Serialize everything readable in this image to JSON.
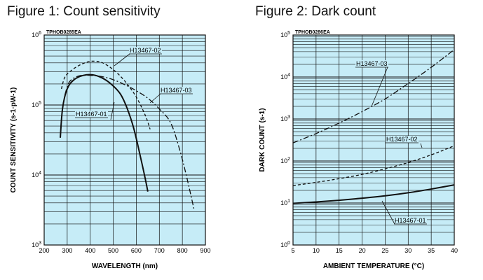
{
  "chart_data": [
    {
      "type": "line",
      "title": "Figure 1: Count sensitivity",
      "code": "TPHOB0285EA",
      "xlabel": "WAVELENGTH (nm)",
      "ylabel": "COUNT SENSITIVITY (s-1·pW-1)",
      "xlim": [
        200,
        900
      ],
      "ylim": [
        1000,
        1000000
      ],
      "yscale": "log",
      "xticks": [
        "200",
        "300",
        "400",
        "500",
        "600",
        "700",
        "800",
        "900"
      ],
      "yticks": [
        {
          "base": "10",
          "exp": "3"
        },
        {
          "base": "10",
          "exp": "4"
        },
        {
          "base": "10",
          "exp": "5"
        },
        {
          "base": "10",
          "exp": "6"
        }
      ],
      "series": [
        {
          "name": "H13467-01",
          "style": "solid",
          "x": [
            270,
            280,
            300,
            330,
            370,
            410,
            450,
            490,
            530,
            560,
            590,
            620,
            640,
            650
          ],
          "y": [
            34000,
            90000,
            170000,
            230000,
            265000,
            270000,
            245000,
            200000,
            145000,
            90000,
            45000,
            17000,
            8500,
            5800
          ]
        },
        {
          "name": "H13467-02",
          "style": "dashed",
          "x": [
            275,
            290,
            320,
            360,
            400,
            440,
            470,
            500,
            530,
            560,
            600,
            640,
            660
          ],
          "y": [
            170000,
            250000,
            315000,
            380000,
            420000,
            415000,
            375000,
            320000,
            260000,
            200000,
            130000,
            70000,
            45000
          ]
        },
        {
          "name": "H13467-03",
          "style": "dashdot",
          "x": [
            290,
            310,
            350,
            400,
            450,
            500,
            550,
            600,
            650,
            700,
            750,
            790,
            820,
            850
          ],
          "y": [
            140000,
            215000,
            260000,
            265000,
            255000,
            230000,
            195000,
            160000,
            125000,
            88000,
            55000,
            22000,
            9000,
            3300
          ]
        }
      ]
    },
    {
      "type": "line",
      "title": "Figure 2: Dark count",
      "code": "TPHOB0286EA",
      "xlabel": "AMBIENT TEMPERATURE (°C)",
      "ylabel": "DARK COUNT (s-1)",
      "xlim": [
        5,
        40
      ],
      "ylim": [
        1,
        100000
      ],
      "yscale": "log",
      "xticks": [
        "5",
        "10",
        "15",
        "20",
        "25",
        "30",
        "35",
        "40"
      ],
      "yticks": [
        {
          "base": "10",
          "exp": "0"
        },
        {
          "base": "10",
          "exp": "1"
        },
        {
          "base": "10",
          "exp": "2"
        },
        {
          "base": "10",
          "exp": "3"
        },
        {
          "base": "10",
          "exp": "4"
        },
        {
          "base": "10",
          "exp": "5"
        }
      ],
      "series": [
        {
          "name": "H13467-01",
          "style": "solid",
          "x": [
            5,
            10,
            15,
            20,
            25,
            30,
            35,
            40
          ],
          "y": [
            9.8,
            10.6,
            11.6,
            13,
            14.8,
            17.5,
            21.5,
            27
          ]
        },
        {
          "name": "H13467-02",
          "style": "dashed",
          "x": [
            5,
            10,
            15,
            20,
            25,
            30,
            35,
            40
          ],
          "y": [
            26,
            31,
            38,
            48,
            65,
            92,
            140,
            230
          ]
        },
        {
          "name": "H13467-03",
          "style": "dashdot",
          "x": [
            5,
            10,
            15,
            20,
            25,
            30,
            35,
            40
          ],
          "y": [
            270,
            450,
            800,
            1500,
            3000,
            7000,
            17000,
            45000
          ]
        }
      ]
    }
  ]
}
